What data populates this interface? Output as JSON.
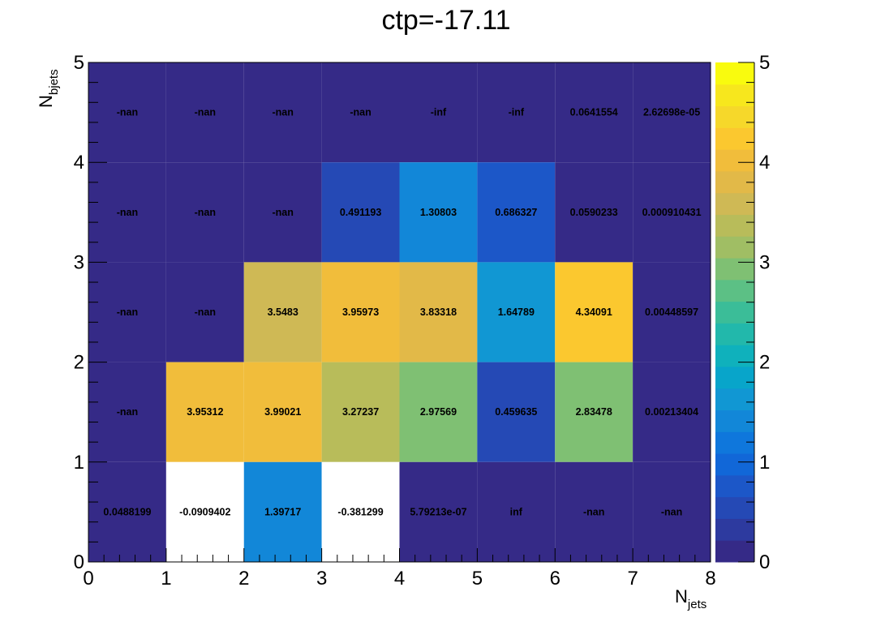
{
  "chart_data": {
    "type": "heatmap",
    "title": "ctp=-17.11",
    "xlabel_main": "N",
    "xlabel_sub": "jets",
    "ylabel_main": "N",
    "ylabel_sub": "bjets",
    "xlim": [
      0,
      8
    ],
    "ylim": [
      0,
      5
    ],
    "zlim": [
      0,
      5
    ],
    "x_ticks": [
      "0",
      "1",
      "2",
      "3",
      "4",
      "5",
      "6",
      "7",
      "8"
    ],
    "y_ticks": [
      "0",
      "1",
      "2",
      "3",
      "4",
      "5"
    ],
    "z_ticks": [
      "0",
      "1",
      "2",
      "3",
      "4",
      "5"
    ],
    "grid": false,
    "colorbar": "right",
    "rows": [
      {
        "y": [
          4,
          5
        ],
        "cells": [
          {
            "x": [
              0,
              1
            ],
            "label": "-nan",
            "z": 0
          },
          {
            "x": [
              1,
              2
            ],
            "label": "-nan",
            "z": 0
          },
          {
            "x": [
              2,
              3
            ],
            "label": "-nan",
            "z": 0
          },
          {
            "x": [
              3,
              4
            ],
            "label": "-nan",
            "z": 0
          },
          {
            "x": [
              4,
              5
            ],
            "label": "-inf",
            "z": 0
          },
          {
            "x": [
              5,
              6
            ],
            "label": "-inf",
            "z": 0
          },
          {
            "x": [
              6,
              7
            ],
            "label": "0.0641554",
            "z": 0.0641554
          },
          {
            "x": [
              7,
              8
            ],
            "label": "2.62698e-05",
            "z": 2.62698e-05
          }
        ]
      },
      {
        "y": [
          3,
          4
        ],
        "cells": [
          {
            "x": [
              0,
              1
            ],
            "label": "-nan",
            "z": 0
          },
          {
            "x": [
              1,
              2
            ],
            "label": "-nan",
            "z": 0
          },
          {
            "x": [
              2,
              3
            ],
            "label": "-nan",
            "z": 0
          },
          {
            "x": [
              3,
              4
            ],
            "label": "0.491193",
            "z": 0.491193
          },
          {
            "x": [
              4,
              5
            ],
            "label": "1.30803",
            "z": 1.30803
          },
          {
            "x": [
              5,
              6
            ],
            "label": "0.686327",
            "z": 0.686327
          },
          {
            "x": [
              6,
              7
            ],
            "label": "0.0590233",
            "z": 0.0590233
          },
          {
            "x": [
              7,
              8
            ],
            "label": "0.000910431",
            "z": 0.000910431
          }
        ]
      },
      {
        "y": [
          2,
          3
        ],
        "cells": [
          {
            "x": [
              0,
              1
            ],
            "label": "-nan",
            "z": 0
          },
          {
            "x": [
              1,
              2
            ],
            "label": "-nan",
            "z": 0
          },
          {
            "x": [
              2,
              3
            ],
            "label": "3.5483",
            "z": 3.5483
          },
          {
            "x": [
              3,
              4
            ],
            "label": "3.95973",
            "z": 3.95973
          },
          {
            "x": [
              4,
              5
            ],
            "label": "3.83318",
            "z": 3.83318
          },
          {
            "x": [
              5,
              6
            ],
            "label": "1.64789",
            "z": 1.64789
          },
          {
            "x": [
              6,
              7
            ],
            "label": "4.34091",
            "z": 4.34091
          },
          {
            "x": [
              7,
              8
            ],
            "label": "0.00448597",
            "z": 0.00448597
          }
        ]
      },
      {
        "y": [
          1,
          2
        ],
        "cells": [
          {
            "x": [
              0,
              1
            ],
            "label": "-nan",
            "z": 0
          },
          {
            "x": [
              1,
              2
            ],
            "label": "3.95312",
            "z": 3.95312
          },
          {
            "x": [
              2,
              3
            ],
            "label": "3.99021",
            "z": 3.99021
          },
          {
            "x": [
              3,
              4
            ],
            "label": "3.27237",
            "z": 3.27237
          },
          {
            "x": [
              4,
              5
            ],
            "label": "2.97569",
            "z": 2.97569
          },
          {
            "x": [
              5,
              6
            ],
            "label": "0.459635",
            "z": 0.459635
          },
          {
            "x": [
              6,
              7
            ],
            "label": "2.83478",
            "z": 2.83478
          },
          {
            "x": [
              7,
              8
            ],
            "label": "0.00213404",
            "z": 0.00213404
          }
        ]
      },
      {
        "y": [
          0,
          1
        ],
        "cells": [
          {
            "x": [
              0,
              1
            ],
            "label": "0.0488199",
            "z": 0.0488199
          },
          {
            "x": [
              1,
              2
            ],
            "label": "-0.0909402",
            "z": null
          },
          {
            "x": [
              2,
              3
            ],
            "label": "1.39717",
            "z": 1.39717
          },
          {
            "x": [
              3,
              4
            ],
            "label": "-0.381299",
            "z": null
          },
          {
            "x": [
              4,
              5
            ],
            "label": "5.79213e-07",
            "z": 5.79213e-07
          },
          {
            "x": [
              5,
              6
            ],
            "label": "inf",
            "z": 0
          },
          {
            "x": [
              6,
              7
            ],
            "label": "-nan",
            "z": 0
          },
          {
            "x": [
              7,
              8
            ],
            "label": "-nan",
            "z": 0
          }
        ]
      }
    ],
    "palette": [
      "#352a87",
      "#2d3a9f",
      "#2549b5",
      "#1c57c8",
      "#1167d8",
      "#0f77dc",
      "#1287d8",
      "#1197d3",
      "#08a5ca",
      "#0fb1bc",
      "#22b8ab",
      "#3bbd98",
      "#5cc085",
      "#7fc073",
      "#a0be64",
      "#b8bc5a",
      "#cfb955",
      "#e2b948",
      "#f1bd3b",
      "#fbc82f",
      "#f6d82a",
      "#f7e71d",
      "#f9fb0e"
    ],
    "empty_color": "#ffffff"
  }
}
